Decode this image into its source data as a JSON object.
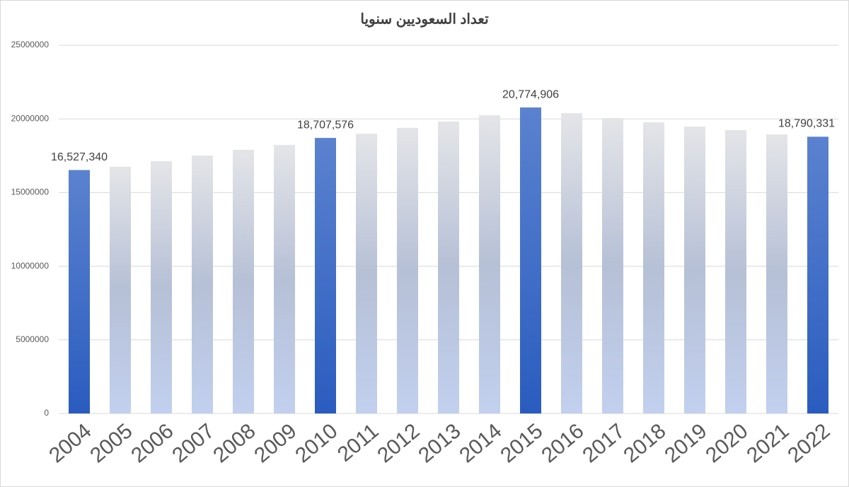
{
  "chart_data": {
    "type": "bar",
    "title": "تعداد السعوديين سنويا",
    "categories": [
      "2004",
      "2005",
      "2006",
      "2007",
      "2008",
      "2009",
      "2010",
      "2011",
      "2012",
      "2013",
      "2014",
      "2015",
      "2016",
      "2017",
      "2018",
      "2019",
      "2020",
      "2021",
      "2022"
    ],
    "values": [
      16527340,
      16750000,
      17130000,
      17510000,
      17900000,
      18230000,
      18707576,
      19000000,
      19390000,
      19820000,
      20250000,
      20774906,
      20390000,
      20060000,
      19770000,
      19480000,
      19240000,
      18950000,
      18790331
    ],
    "value_labels": [
      "16,527,340",
      null,
      null,
      null,
      null,
      null,
      "18,707,576",
      null,
      null,
      null,
      null,
      "20,774,906",
      null,
      null,
      null,
      null,
      null,
      null,
      "18,790,331"
    ],
    "ylim": [
      0,
      25000000
    ],
    "yticks": [
      0,
      5000000,
      10000000,
      15000000,
      20000000,
      25000000
    ],
    "grid": true
  }
}
